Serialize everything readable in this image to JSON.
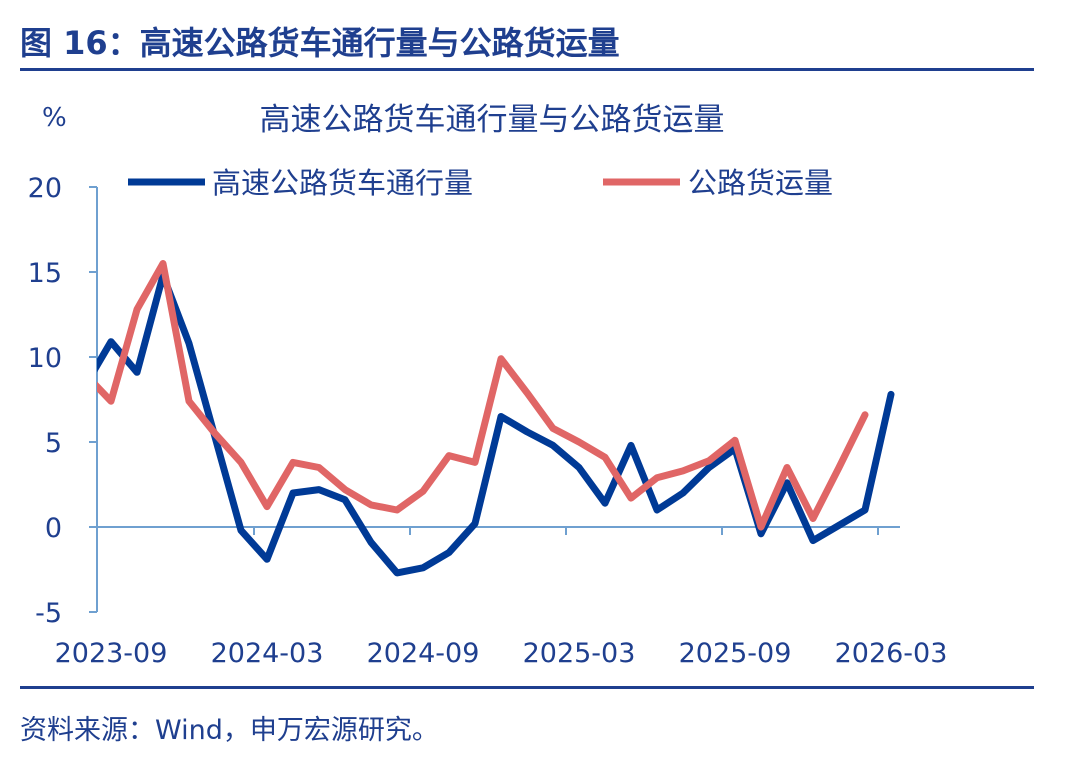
{
  "figure_title": "图 16：高速公路货车通行量与公路货运量",
  "source": "资料来源：Wind，申万宏源研究。",
  "colors": {
    "series1": "#003a96",
    "series2": "#e06666",
    "axis": "#6fa0d0",
    "text": "#1f3f8f"
  },
  "chart_data": {
    "type": "line",
    "title": "高速公路货车通行量与公路货运量",
    "ylabel": "%",
    "ylim": [
      -5,
      20
    ],
    "yticks": [
      -5,
      0,
      5,
      10,
      15,
      20
    ],
    "xtick_labels": [
      "2023-09",
      "2024-03",
      "2024-09",
      "2025-03",
      "2025-09",
      "2026-03"
    ],
    "grid": false,
    "legend": "top",
    "x": [
      "2023-08",
      "2023-09",
      "2023-10",
      "2023-11",
      "2023-12",
      "2024-01",
      "2024-02",
      "2024-03",
      "2024-04",
      "2024-05",
      "2024-06",
      "2024-07",
      "2024-08",
      "2024-09",
      "2024-10",
      "2024-11",
      "2024-12",
      "2025-01",
      "2025-02",
      "2025-03",
      "2025-04",
      "2025-05",
      "2025-06",
      "2025-07",
      "2025-08",
      "2025-09",
      "2025-10",
      "2025-11",
      "2025-12",
      "2026-01",
      "2026-02",
      "2026-03"
    ],
    "series": [
      {
        "name": "高速公路货车通行量",
        "values": [
          8.3,
          10.9,
          9.1,
          14.8,
          10.8,
          5.3,
          -0.2,
          -1.9,
          2.0,
          2.2,
          1.6,
          -0.9,
          -2.7,
          -2.4,
          -1.5,
          0.2,
          6.5,
          5.6,
          4.8,
          3.5,
          1.4,
          4.8,
          1.0,
          2.0,
          3.5,
          4.6,
          -0.4,
          2.6,
          -0.8,
          0.1,
          1.0,
          7.8
        ]
      },
      {
        "name": "公路货运量",
        "values": [
          9.0,
          7.4,
          12.8,
          15.5,
          7.4,
          5.5,
          3.8,
          1.2,
          3.8,
          3.5,
          2.2,
          1.3,
          1.0,
          2.1,
          4.2,
          3.8,
          9.9,
          7.9,
          5.8,
          5.0,
          4.1,
          1.7,
          2.9,
          3.3,
          3.9,
          5.1,
          0.0,
          3.5,
          0.5,
          3.5,
          6.6,
          null
        ]
      }
    ]
  }
}
